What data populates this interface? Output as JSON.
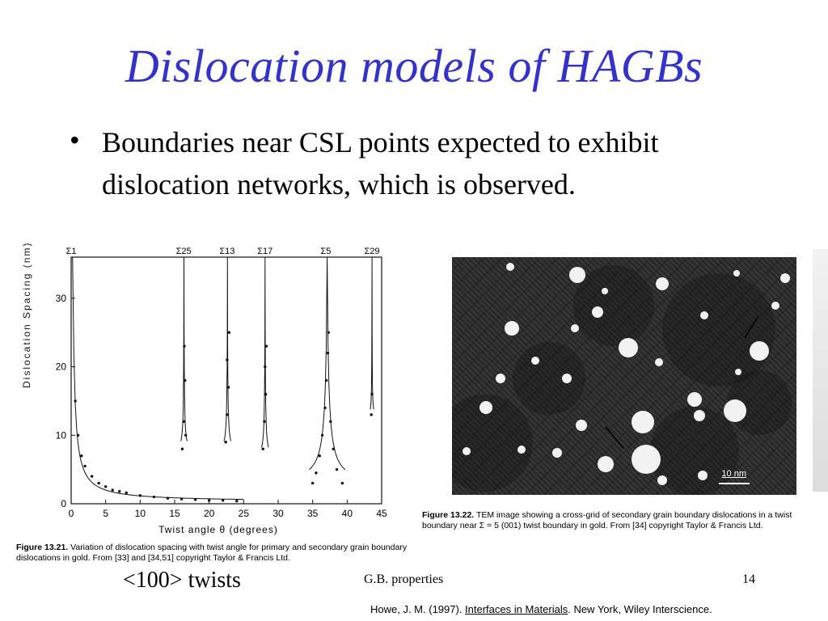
{
  "title": "Dislocation models of HAGBs",
  "bullet": "Boundaries near CSL points expected to exhibit dislocation networks, which is observed.",
  "plot": {
    "ylabel": "Dislocation Spacing (nm)",
    "xlabel": "Twist angle θ (degrees)",
    "x_ticks": [
      "0",
      "5",
      "10",
      "15",
      "20",
      "25",
      "30",
      "35",
      "40",
      "45"
    ],
    "y_ticks": [
      "0",
      "10",
      "20",
      "30"
    ],
    "sigma_labels": [
      "Σ1",
      "Σ25",
      "Σ13",
      "Σ17",
      "Σ5",
      "Σ29"
    ]
  },
  "chart_data": {
    "type": "scatter",
    "xlabel": "Twist angle θ (degrees)",
    "ylabel": "Dislocation Spacing (nm)",
    "xlim": [
      0,
      45
    ],
    "ylim": [
      0,
      36
    ],
    "x_ticks": [
      0,
      5,
      10,
      15,
      20,
      25,
      30,
      35,
      40,
      45
    ],
    "y_ticks": [
      0,
      10,
      20,
      30
    ],
    "annotations": [
      {
        "label": "Σ1",
        "x": 0
      },
      {
        "label": "Σ25",
        "x": 16.3
      },
      {
        "label": "Σ13",
        "x": 22.6
      },
      {
        "label": "Σ17",
        "x": 28.1
      },
      {
        "label": "Σ5",
        "x": 36.9
      },
      {
        "label": "Σ29",
        "x": 43.6
      }
    ],
    "series": [
      {
        "values": [
          [
            0.6,
            15
          ],
          [
            1,
            10
          ],
          [
            1.5,
            7
          ],
          [
            2,
            5.5
          ],
          [
            3,
            4
          ],
          [
            4,
            3
          ],
          [
            5,
            2.5
          ],
          [
            6,
            2
          ],
          [
            7,
            1.8
          ],
          [
            8,
            1.6
          ],
          [
            10,
            1.2
          ],
          [
            12,
            1
          ],
          [
            14,
            0.8
          ],
          [
            16,
            0.7
          ],
          [
            18,
            0.6
          ],
          [
            20,
            0.5
          ],
          [
            22,
            0.5
          ],
          [
            24,
            0.4
          ],
          [
            16.1,
            8
          ],
          [
            16.3,
            12
          ],
          [
            16.5,
            18
          ],
          [
            16.4,
            23
          ],
          [
            16.6,
            10
          ],
          [
            22.4,
            9
          ],
          [
            22.6,
            13
          ],
          [
            22.8,
            17
          ],
          [
            22.6,
            21
          ],
          [
            22.9,
            25
          ],
          [
            27.8,
            8
          ],
          [
            28,
            12
          ],
          [
            28.2,
            16
          ],
          [
            28.1,
            20
          ],
          [
            28.3,
            23
          ],
          [
            35,
            3
          ],
          [
            35.5,
            4.5
          ],
          [
            36,
            7
          ],
          [
            36.4,
            10
          ],
          [
            36.8,
            14
          ],
          [
            37,
            18
          ],
          [
            37.2,
            22
          ],
          [
            37.3,
            25
          ],
          [
            37.6,
            12
          ],
          [
            38,
            8
          ],
          [
            38.5,
            5
          ],
          [
            39.3,
            3
          ],
          [
            43.5,
            13
          ],
          [
            43.6,
            16
          ]
        ]
      }
    ]
  },
  "captions": {
    "left_fig": "Figure 13.21.",
    "left_text": "Variation of dislocation spacing with twist angle for primary and secondary grain boundary dislocations in gold. From [33] and [34,51] copyright Taylor & Francis Ltd.",
    "right_fig": "Figure 13.22.",
    "right_text": "TEM image showing a cross-grid of secondary grain boundary dislocations in a twist boundary near Σ = 5 (001) twist boundary in gold. From [34] copyright Taylor & Francis Ltd."
  },
  "tem_scale": "10 nm",
  "footer": {
    "left": "<100> twists",
    "center": "G.B. properties",
    "page": "14"
  },
  "reference": {
    "prefix": "Howe, J. M. (1997). ",
    "book": "Interfaces in Materials",
    "suffix": ". New York, Wiley Interscience."
  }
}
